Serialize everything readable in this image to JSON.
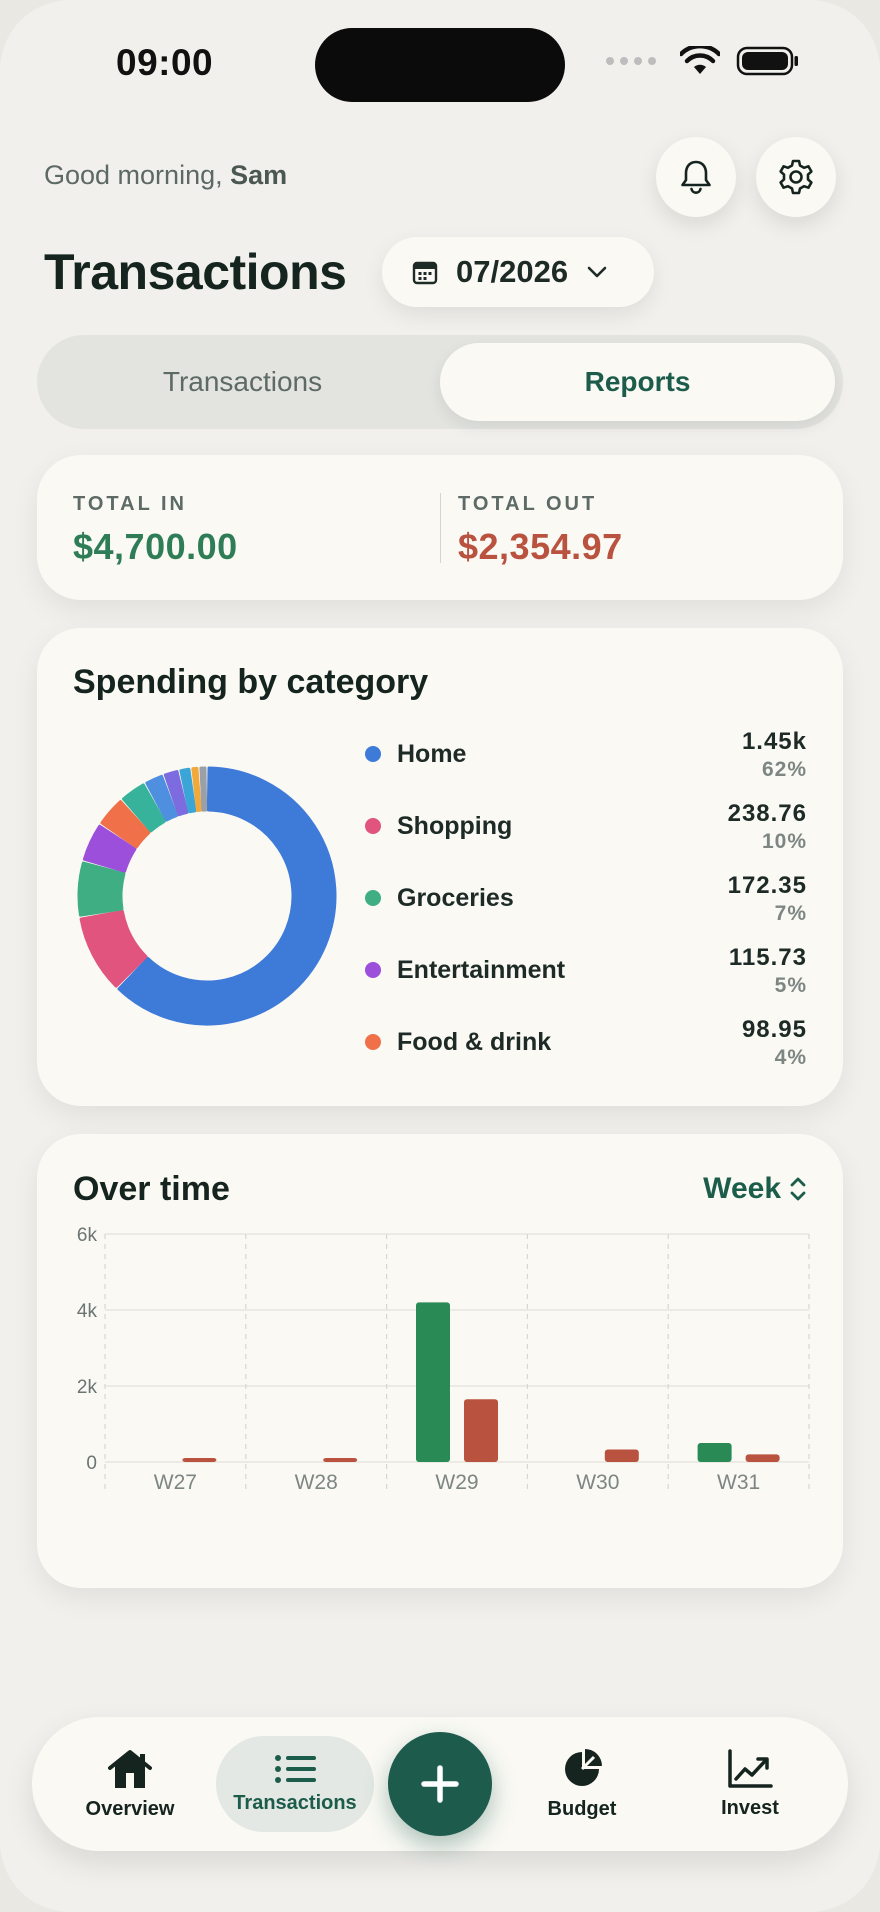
{
  "status_bar": {
    "time": "09:00"
  },
  "header": {
    "greeting_prefix": "Good morning, ",
    "user_name": "Sam",
    "title": "Transactions",
    "month": "07/2026"
  },
  "tabs": [
    {
      "label": "Transactions",
      "active": false
    },
    {
      "label": "Reports",
      "active": true
    }
  ],
  "totals": {
    "in_label": "TOTAL IN",
    "in_value": "$4,700.00",
    "out_label": "TOTAL OUT",
    "out_value": "$2,354.97"
  },
  "colors": {
    "accent": "#1c5c4a",
    "income": "#2f7d57",
    "expense": "#b9523f"
  },
  "spending": {
    "title": "Spending by category",
    "categories": [
      {
        "name": "Home",
        "amount": "1.45k",
        "pct": "62%",
        "color": "#3e7ad8"
      },
      {
        "name": "Shopping",
        "amount": "238.76",
        "pct": "10%",
        "color": "#e0547e"
      },
      {
        "name": "Groceries",
        "amount": "172.35",
        "pct": "7%",
        "color": "#3fae82"
      },
      {
        "name": "Entertainment",
        "amount": "115.73",
        "pct": "5%",
        "color": "#9b4fdb"
      },
      {
        "name": "Food & drink",
        "amount": "98.95",
        "pct": "4%",
        "color": "#f07049"
      }
    ]
  },
  "over_time": {
    "title": "Over time",
    "range": "Week"
  },
  "chart_data": [
    {
      "type": "pie",
      "title": "Spending by category",
      "labels": [
        "Home",
        "Shopping",
        "Groceries",
        "Entertainment",
        "Food & drink",
        "",
        "",
        "",
        "",
        "",
        ""
      ],
      "values": [
        62,
        10,
        7,
        5,
        4,
        3.5,
        2.5,
        2,
        1.5,
        1,
        1
      ],
      "colors": [
        "#3e7ad8",
        "#e0547e",
        "#3fae82",
        "#9b4fdb",
        "#f07049",
        "#36b39a",
        "#4e8fe0",
        "#7d6be0",
        "#3aa5d6",
        "#f2a93b",
        "#9aa0a6"
      ]
    },
    {
      "type": "bar",
      "title": "Over time",
      "categories": [
        "W27",
        "W28",
        "W29",
        "W30",
        "W31"
      ],
      "series": [
        {
          "values": [
            0,
            0,
            4200,
            0,
            500
          ],
          "color": "#2a8a55"
        },
        {
          "values": [
            80,
            100,
            1650,
            330,
            200
          ],
          "color": "#b9523f"
        }
      ],
      "yticks": [
        "6k",
        "4k",
        "2k",
        "0"
      ],
      "ylim": [
        0,
        6000
      ],
      "grid": true
    }
  ],
  "nav": [
    {
      "label": "Overview",
      "icon": "home-icon"
    },
    {
      "label": "Transactions",
      "icon": "list-icon"
    },
    {
      "label": "Budget",
      "icon": "pie-chart-icon"
    },
    {
      "label": "Invest",
      "icon": "trend-chart-icon"
    }
  ],
  "fab": {
    "icon": "plus-icon"
  }
}
